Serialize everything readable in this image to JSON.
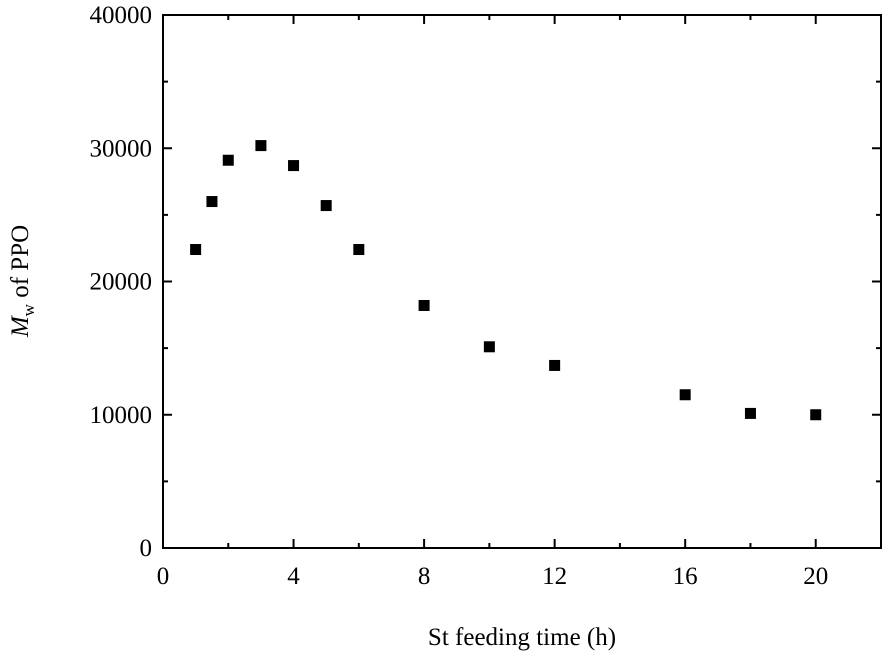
{
  "chart_data": {
    "type": "scatter",
    "xlabel": "St feeding time (h)",
    "ylabel": {
      "main": "M",
      "subscript": "w",
      "rest": " of PPO"
    },
    "xlim": [
      0,
      22
    ],
    "ylim": [
      0,
      40000
    ],
    "x_ticks": [
      0,
      4,
      8,
      12,
      16,
      20
    ],
    "x_tick_labels": [
      "0",
      "4",
      "8",
      "12",
      "16",
      "20"
    ],
    "y_ticks": [
      0,
      10000,
      20000,
      30000,
      40000
    ],
    "y_tick_labels": [
      "0",
      "10000",
      "20000",
      "30000",
      "40000"
    ],
    "grid": false,
    "legend": "none",
    "marker": "square",
    "color": "#000000",
    "points": [
      {
        "x": 1,
        "y": 22400
      },
      {
        "x": 1.5,
        "y": 26000
      },
      {
        "x": 2,
        "y": 29100
      },
      {
        "x": 3,
        "y": 30200
      },
      {
        "x": 4,
        "y": 28700
      },
      {
        "x": 5,
        "y": 25700
      },
      {
        "x": 6,
        "y": 22400
      },
      {
        "x": 8,
        "y": 18200
      },
      {
        "x": 10,
        "y": 15100
      },
      {
        "x": 12,
        "y": 13700
      },
      {
        "x": 16,
        "y": 11500
      },
      {
        "x": 18,
        "y": 10100
      },
      {
        "x": 20,
        "y": 10000
      }
    ]
  }
}
